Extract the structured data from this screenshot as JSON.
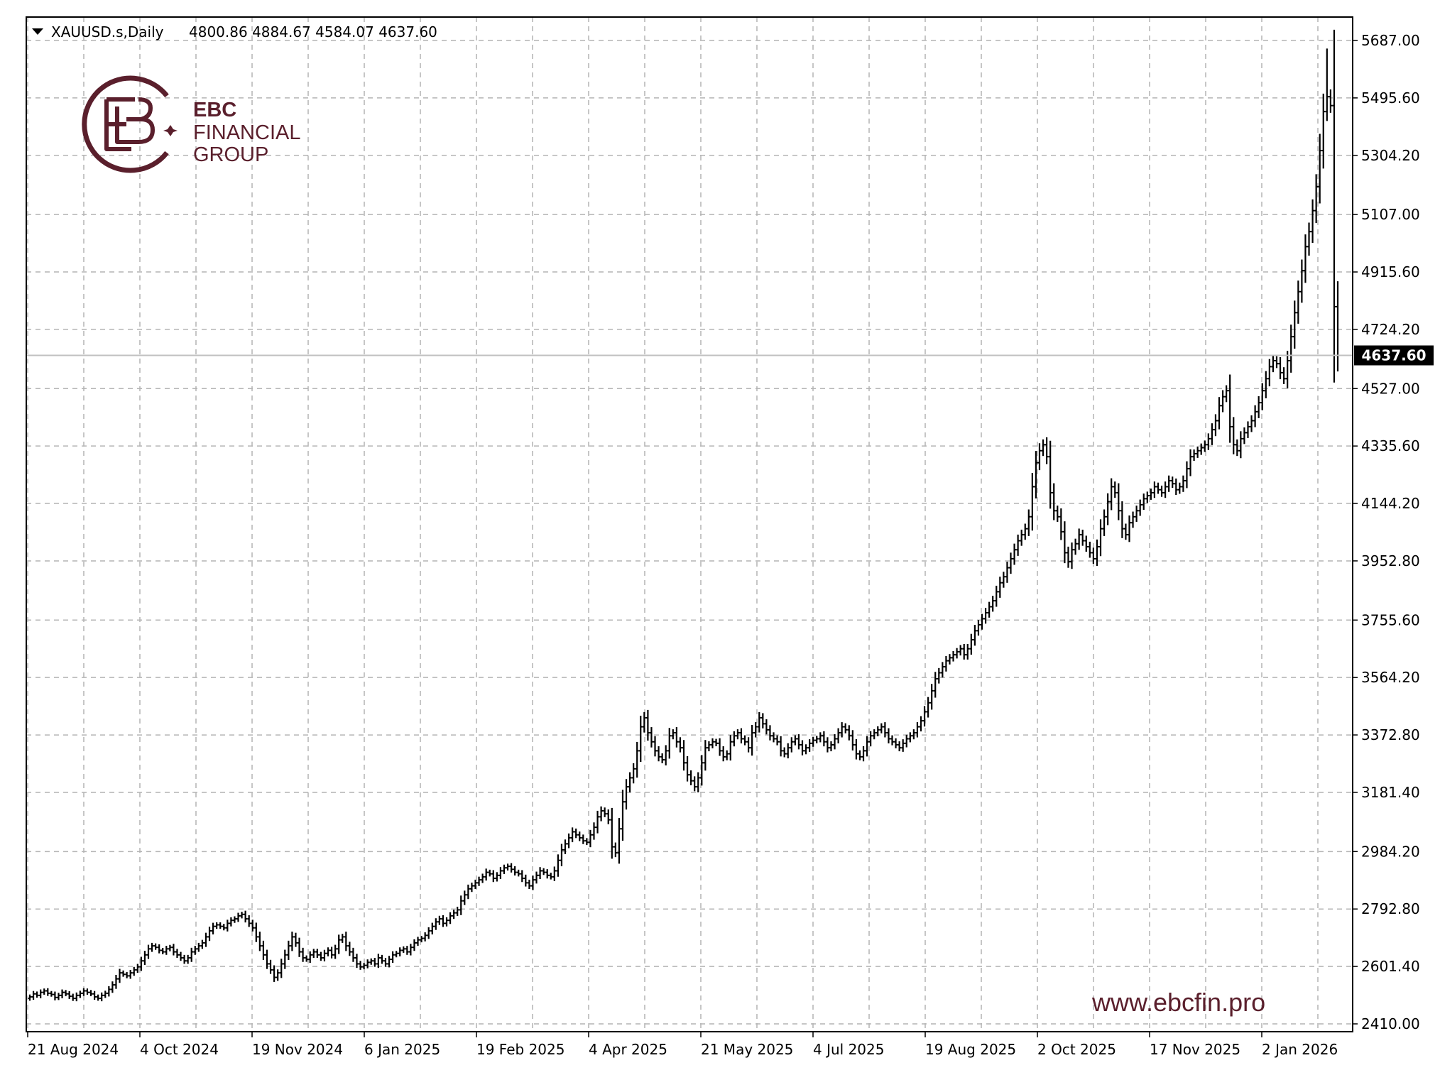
{
  "header": {
    "symbol_label": "XAUUSD.s,Daily",
    "ohlc_label": "4800.86 4884.67 4584.07 4637.60"
  },
  "logo": {
    "line1": "EBC",
    "line2": "FINANCIAL",
    "line3": "GROUP"
  },
  "watermark": "www.ebcfin.pro",
  "current_price_label": "4637.60",
  "colors": {
    "bars": "#000000",
    "grid": "#b4b4b4",
    "brand": "#5a1f2c",
    "current_line": "#c0c0c0"
  },
  "chart_data": {
    "type": "ohlc-bar",
    "symbol": "XAUUSD.s",
    "timeframe": "Daily",
    "last_bar": {
      "open": 4800.86,
      "high": 4884.67,
      "low": 4584.07,
      "close": 4637.6
    },
    "current_price": 4637.6,
    "ylim": [
      2410.0,
      5750.0
    ],
    "y_ticks": [
      "5687.00",
      "5495.60",
      "5304.20",
      "5107.00",
      "4915.60",
      "4724.20",
      "4527.00",
      "4335.60",
      "4144.20",
      "3952.80",
      "3755.60",
      "3564.20",
      "3372.80",
      "3181.40",
      "2984.20",
      "2792.80",
      "2601.40",
      "2410.00"
    ],
    "x_ticks": [
      "21 Aug 2024",
      "4 Oct 2024",
      "19 Nov 2024",
      "6 Jan 2025",
      "19 Feb 2025",
      "4 Apr 2025",
      "21 May 2025",
      "4 Jul 2025",
      "19 Aug 2025",
      "2 Oct 2025",
      "17 Nov 2025",
      "2 Jan 2026"
    ],
    "closes_by_day": [
      2500,
      2510,
      2505,
      2515,
      2520,
      2512,
      2508,
      2498,
      2505,
      2515,
      2510,
      2502,
      2495,
      2505,
      2512,
      2520,
      2515,
      2510,
      2500,
      2495,
      2505,
      2512,
      2525,
      2540,
      2560,
      2580,
      2575,
      2570,
      2580,
      2590,
      2600,
      2620,
      2640,
      2660,
      2670,
      2665,
      2655,
      2650,
      2660,
      2665,
      2650,
      2640,
      2630,
      2620,
      2630,
      2650,
      2660,
      2670,
      2680,
      2700,
      2720,
      2735,
      2740,
      2735,
      2730,
      2745,
      2755,
      2760,
      2770,
      2775,
      2760,
      2745,
      2730,
      2700,
      2670,
      2640,
      2610,
      2590,
      2565,
      2580,
      2610,
      2640,
      2670,
      2700,
      2680,
      2650,
      2630,
      2625,
      2640,
      2650,
      2640,
      2630,
      2645,
      2655,
      2640,
      2660,
      2690,
      2700,
      2670,
      2650,
      2630,
      2610,
      2600,
      2605,
      2615,
      2620,
      2610,
      2630,
      2620,
      2610,
      2625,
      2640,
      2645,
      2655,
      2660,
      2650,
      2665,
      2680,
      2690,
      2695,
      2705,
      2720,
      2735,
      2750,
      2760,
      2745,
      2755,
      2770,
      2780,
      2790,
      2820,
      2840,
      2860,
      2870,
      2880,
      2890,
      2900,
      2915,
      2910,
      2895,
      2905,
      2920,
      2930,
      2935,
      2925,
      2915,
      2910,
      2895,
      2880,
      2870,
      2890,
      2905,
      2920,
      2915,
      2905,
      2900,
      2920,
      2955,
      2990,
      3010,
      3030,
      3050,
      3040,
      3030,
      3020,
      3015,
      3040,
      3065,
      3100,
      3120,
      3110,
      3090,
      3000,
      2980,
      3060,
      3150,
      3200,
      3230,
      3260,
      3320,
      3400,
      3430,
      3380,
      3350,
      3320,
      3300,
      3290,
      3320,
      3370,
      3380,
      3350,
      3330,
      3280,
      3240,
      3220,
      3200,
      3230,
      3280,
      3330,
      3340,
      3350,
      3345,
      3320,
      3300,
      3310,
      3350,
      3370,
      3380,
      3360,
      3350,
      3330,
      3380,
      3400,
      3430,
      3410,
      3390,
      3370,
      3360,
      3350,
      3320,
      3310,
      3330,
      3350,
      3360,
      3340,
      3320,
      3330,
      3345,
      3355,
      3360,
      3370,
      3350,
      3330,
      3340,
      3360,
      3380,
      3400,
      3390,
      3370,
      3340,
      3310,
      3300,
      3320,
      3350,
      3370,
      3380,
      3390,
      3400,
      3380,
      3360,
      3350,
      3340,
      3330,
      3345,
      3360,
      3370,
      3380,
      3400,
      3420,
      3450,
      3480,
      3520,
      3560,
      3580,
      3600,
      3620,
      3630,
      3640,
      3650,
      3660,
      3640,
      3660,
      3690,
      3720,
      3740,
      3760,
      3780,
      3800,
      3820,
      3850,
      3880,
      3900,
      3930,
      3960,
      3990,
      4020,
      4040,
      4060,
      4100,
      4200,
      4280,
      4320,
      4340,
      4300,
      4180,
      4120,
      4100,
      4050,
      3980,
      3950,
      3990,
      4010,
      4040,
      4020,
      4000,
      3980,
      3960,
      4000,
      4060,
      4100,
      4150,
      4200,
      4180,
      4120,
      4060,
      4040,
      4080,
      4100,
      4120,
      4140,
      4160,
      4170,
      4180,
      4200,
      4190,
      4180,
      4200,
      4220,
      4210,
      4190,
      4200,
      4220,
      4260,
      4300,
      4310,
      4320,
      4330,
      4340,
      4360,
      4390,
      4420,
      4470,
      4500,
      4520,
      4400,
      4340,
      4320,
      4360,
      4380,
      4400,
      4420,
      4450,
      4480,
      4520,
      4560,
      4600,
      4620,
      4610,
      4580,
      4560,
      4620,
      4700,
      4780,
      4850,
      4920,
      5000,
      5050,
      5120,
      5200,
      5320,
      5450,
      5500,
      5470,
      4800,
      4637.6
    ]
  }
}
